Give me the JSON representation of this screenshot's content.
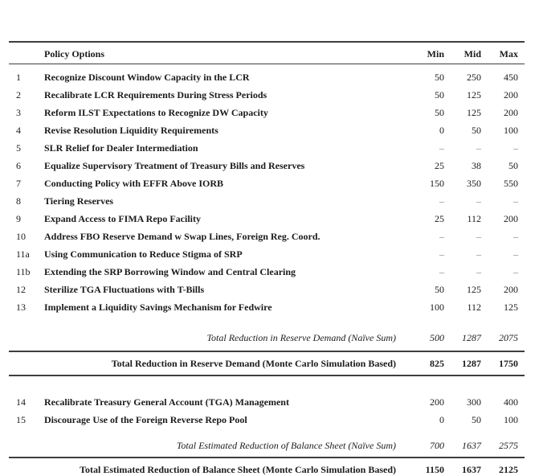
{
  "table": {
    "dash": "–",
    "header": {
      "policy": "Policy Options",
      "min": "Min",
      "mid": "Mid",
      "max": "Max"
    },
    "rows": [
      {
        "num": "1",
        "label": "Recognize Discount Window Capacity in the LCR",
        "min": "50",
        "mid": "250",
        "max": "450"
      },
      {
        "num": "2",
        "label": "Recalibrate LCR Requirements During Stress Periods",
        "min": "50",
        "mid": "125",
        "max": "200"
      },
      {
        "num": "3",
        "label": "Reform ILST Expectations to Recognize DW Capacity",
        "min": "50",
        "mid": "125",
        "max": "200"
      },
      {
        "num": "4",
        "label": "Revise Resolution Liquidity Requirements",
        "min": "0",
        "mid": "50",
        "max": "100"
      },
      {
        "num": "5",
        "label": "SLR Relief for Dealer Intermediation",
        "min": "–",
        "mid": "–",
        "max": "–"
      },
      {
        "num": "6",
        "label": "Equalize Supervisory Treatment of Treasury Bills and Reserves",
        "min": "25",
        "mid": "38",
        "max": "50"
      },
      {
        "num": "7",
        "label": "Conducting Policy with EFFR Above IORB",
        "min": "150",
        "mid": "350",
        "max": "550"
      },
      {
        "num": "8",
        "label": "Tiering Reserves",
        "min": "–",
        "mid": "–",
        "max": "–"
      },
      {
        "num": "9",
        "label": "Expand Access to FIMA Repo Facility",
        "min": "25",
        "mid": "112",
        "max": "200"
      },
      {
        "num": "10",
        "label": "Address FBO Reserve Demand w Swap Lines, Foreign Reg. Coord.",
        "min": "–",
        "mid": "–",
        "max": "–"
      },
      {
        "num": "11a",
        "label": "Using Communication to Reduce Stigma of SRP",
        "min": "–",
        "mid": "–",
        "max": "–"
      },
      {
        "num": "11b",
        "label": "Extending the SRP Borrowing Window and Central Clearing",
        "min": "–",
        "mid": "–",
        "max": "–"
      },
      {
        "num": "12",
        "label": "Sterilize TGA Fluctuations with T-Bills",
        "min": "50",
        "mid": "125",
        "max": "200"
      },
      {
        "num": "13",
        "label": "Implement a Liquidity Savings Mechanism for Fedwire",
        "min": "100",
        "mid": "112",
        "max": "125"
      }
    ],
    "subtotal1": {
      "label": "Total Reduction in Reserve Demand (Naïve Sum)",
      "min": "500",
      "mid": "1287",
      "max": "2075"
    },
    "total1": {
      "label": "Total Reduction in Reserve Demand (Monte Carlo Simulation Based)",
      "min": "825",
      "mid": "1287",
      "max": "1750"
    },
    "rows2": [
      {
        "num": "14",
        "label": "Recalibrate Treasury General Account (TGA) Management",
        "min": "200",
        "mid": "300",
        "max": "400"
      },
      {
        "num": "15",
        "label": "Discourage Use of the Foreign Reverse Repo Pool",
        "min": "0",
        "mid": "50",
        "max": "100"
      }
    ],
    "subtotal2": {
      "label": "Total Estimated Reduction of Balance Sheet (Naïve Sum)",
      "min": "700",
      "mid": "1637",
      "max": "2575"
    },
    "total2": {
      "label": "Total Estimated Reduction of Balance Sheet (Monte Carlo Simulation Based)",
      "min": "1150",
      "mid": "1637",
      "max": "2125"
    }
  },
  "colors": {
    "text": "#1b1b1b",
    "rule": "#3e3e3e",
    "dash": "#7d7d7d"
  }
}
